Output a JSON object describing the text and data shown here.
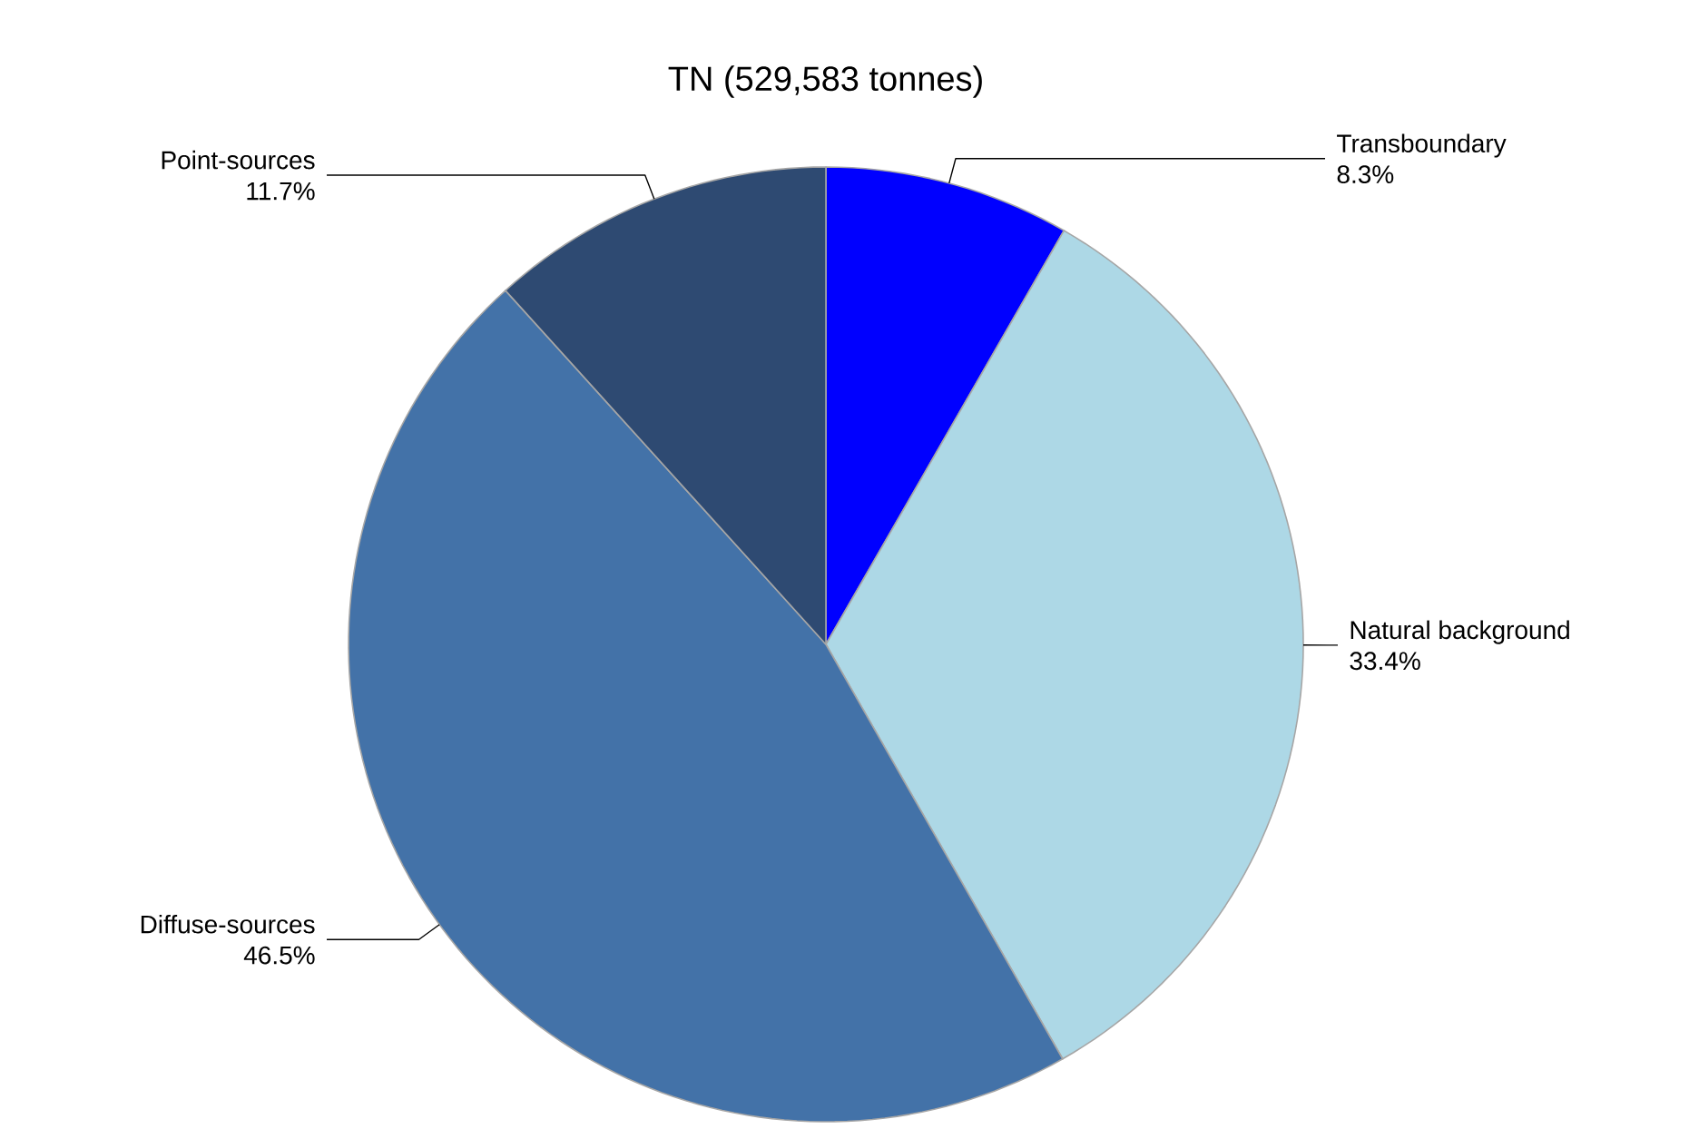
{
  "chart_data": {
    "type": "pie",
    "title": "TN (529,583 tonnes)",
    "categories": [
      "Transboundary",
      "Natural background",
      "Diffuse-sources",
      "Point-sources"
    ],
    "values": [
      8.3,
      33.4,
      46.5,
      11.7
    ],
    "value_labels": [
      "8.3%",
      "33.4%",
      "46.5%",
      "11.7%"
    ],
    "colors": [
      "#0000ff",
      "#add8e6",
      "#4372a8",
      "#2e4a72"
    ]
  }
}
